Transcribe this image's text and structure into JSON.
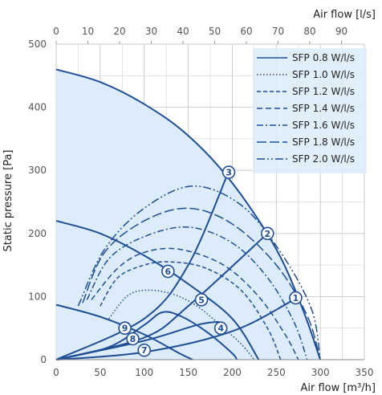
{
  "chart_data": {
    "type": "line",
    "xlabel_bottom": "Air flow [m³/h]",
    "xlabel_top": "Air flow [l/s]",
    "ylabel": "Static pressure [Pa]",
    "xlim": [
      0,
      350
    ],
    "ylim": [
      0,
      500
    ],
    "x_ticks": [
      "0",
      "50",
      "100",
      "150",
      "200",
      "250",
      "300",
      "350"
    ],
    "x_top_ticks": [
      "0",
      "10",
      "20",
      "30",
      "40",
      "50",
      "60",
      "70",
      "80",
      "90"
    ],
    "y_ticks": [
      "0",
      "100",
      "200",
      "300",
      "400",
      "500"
    ],
    "grid": true,
    "legend_position": "top-right",
    "colors": {
      "line": "#1f4e96",
      "fill": "#dcecfa",
      "grid": "#c8c8c8"
    },
    "fan_curves": [
      {
        "points": [
          [
            0,
            460
          ],
          [
            50,
            440
          ],
          [
            100,
            405
          ],
          [
            150,
            355
          ],
          [
            200,
            280
          ],
          [
            250,
            175
          ],
          [
            280,
            80
          ],
          [
            300,
            0
          ]
        ]
      },
      {
        "points": [
          [
            0,
            220
          ],
          [
            50,
            200
          ],
          [
            100,
            165
          ],
          [
            150,
            120
          ],
          [
            200,
            65
          ],
          [
            230,
            0
          ]
        ]
      },
      {
        "points": [
          [
            0,
            87
          ],
          [
            50,
            68
          ],
          [
            100,
            40
          ],
          [
            140,
            10
          ],
          [
            155,
            0
          ]
        ]
      }
    ],
    "system_curves": [
      {
        "points": [
          [
            0,
            0
          ],
          [
            100,
            12
          ],
          [
            200,
            45
          ],
          [
            270,
            95
          ]
        ]
      },
      {
        "points": [
          [
            0,
            0
          ],
          [
            100,
            35
          ],
          [
            150,
            85
          ],
          [
            240,
            200
          ]
        ]
      },
      {
        "points": [
          [
            0,
            0
          ],
          [
            100,
            65
          ],
          [
            150,
            150
          ],
          [
            195,
            295
          ]
        ]
      },
      {
        "points": [
          [
            0,
            0
          ],
          [
            100,
            30
          ],
          [
            160,
            55
          ],
          [
            185,
            60
          ]
        ]
      },
      {
        "points": [
          [
            0,
            0
          ],
          [
            60,
            20
          ],
          [
            100,
            55
          ],
          [
            120,
            75
          ],
          [
            140,
            70
          ],
          [
            170,
            45
          ],
          [
            200,
            10
          ],
          [
            205,
            0
          ]
        ]
      }
    ],
    "sfp_series": [
      {
        "name": "SFP 0.8 W/l/s",
        "points": [
          [
            80,
            0
          ],
          [
            100,
            0
          ]
        ]
      },
      {
        "name": "SFP 1.0 W/l/s",
        "points": [
          [
            60,
            65
          ],
          [
            80,
            100
          ],
          [
            100,
            110
          ],
          [
            130,
            105
          ],
          [
            160,
            85
          ],
          [
            190,
            50
          ],
          [
            210,
            25
          ],
          [
            225,
            0
          ]
        ]
      },
      {
        "name": "SFP 1.2 W/l/s",
        "points": [
          [
            50,
            85
          ],
          [
            70,
            130
          ],
          [
            100,
            150
          ],
          [
            130,
            155
          ],
          [
            170,
            145
          ],
          [
            210,
            110
          ],
          [
            240,
            50
          ],
          [
            255,
            0
          ]
        ]
      },
      {
        "name": "SFP 1.4 W/l/s",
        "points": [
          [
            40,
            95
          ],
          [
            70,
            145
          ],
          [
            100,
            170
          ],
          [
            140,
            175
          ],
          [
            190,
            150
          ],
          [
            230,
            100
          ],
          [
            260,
            40
          ],
          [
            275,
            0
          ]
        ]
      },
      {
        "name": "SFP 1.6 W/l/s",
        "points": [
          [
            35,
            95
          ],
          [
            60,
            160
          ],
          [
            100,
            195
          ],
          [
            150,
            210
          ],
          [
            200,
            185
          ],
          [
            240,
            130
          ],
          [
            270,
            60
          ],
          [
            285,
            0
          ]
        ]
      },
      {
        "name": "SFP 1.8 W/l/s",
        "points": [
          [
            30,
            90
          ],
          [
            55,
            170
          ],
          [
            100,
            220
          ],
          [
            150,
            240
          ],
          [
            200,
            215
          ],
          [
            250,
            150
          ],
          [
            285,
            70
          ],
          [
            300,
            0
          ]
        ]
      },
      {
        "name": "SFP 2.0 W/l/s",
        "points": [
          [
            25,
            85
          ],
          [
            55,
            175
          ],
          [
            100,
            240
          ],
          [
            155,
            275
          ],
          [
            210,
            245
          ],
          [
            255,
            170
          ],
          [
            290,
            80
          ],
          [
            300,
            0
          ]
        ]
      }
    ],
    "markers": [
      {
        "label": "1",
        "x": 272,
        "y": 98
      },
      {
        "label": "2",
        "x": 240,
        "y": 200
      },
      {
        "label": "3",
        "x": 196,
        "y": 297
      },
      {
        "label": "4",
        "x": 187,
        "y": 50
      },
      {
        "label": "5",
        "x": 165,
        "y": 95
      },
      {
        "label": "6",
        "x": 127,
        "y": 140
      },
      {
        "label": "7",
        "x": 100,
        "y": 15
      },
      {
        "label": "8",
        "x": 87,
        "y": 33
      },
      {
        "label": "9",
        "x": 78,
        "y": 50
      }
    ]
  }
}
